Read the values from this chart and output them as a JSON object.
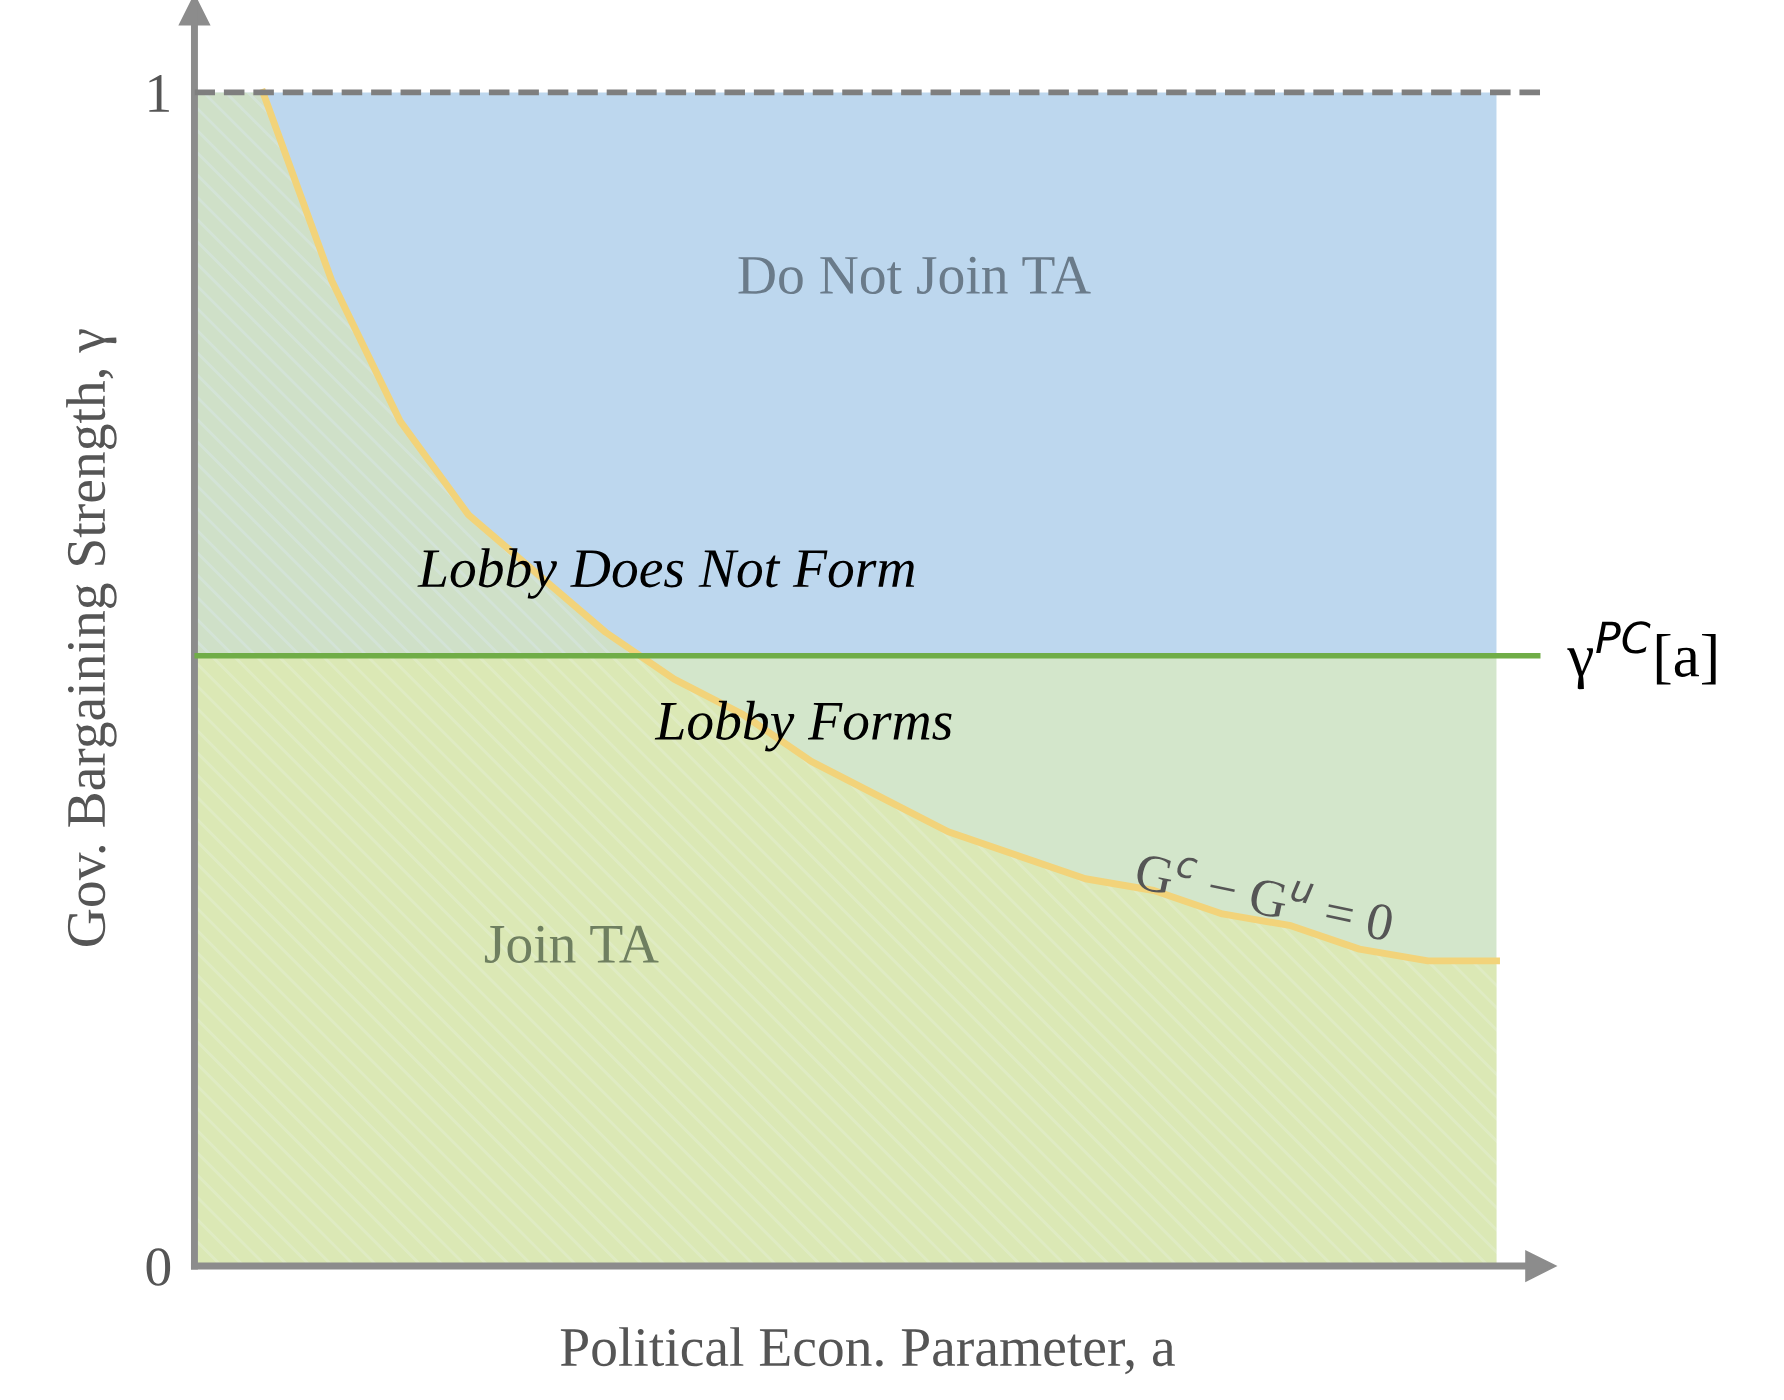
{
  "chart_data": {
    "type": "area",
    "xlabel": "Political Econ. Parameter, a",
    "ylabel": "Gov. Bargaining Strength, γ",
    "categories": [
      null,
      null,
      null,
      null,
      null,
      null,
      null,
      null,
      null,
      null,
      null,
      null,
      null,
      null,
      null,
      null,
      null,
      null,
      null,
      null
    ],
    "series": [
      {
        "name": "G$^{c}$ − G$^{u}$ = 0",
        "color": "#f2d37a",
        "values": [
          1.0,
          1.0,
          0.84,
          0.72,
          0.64,
          0.59,
          0.54,
          0.5,
          0.47,
          0.43,
          0.4,
          0.37,
          0.35,
          0.33,
          0.32,
          0.3,
          0.29,
          0.27,
          0.26,
          0.26
        ]
      }
    ],
    "ylim": [
      0,
      1.07
    ],
    "yticks": [
      0,
      1
    ],
    "grid": false,
    "legend": false,
    "bands": [
      {
        "axis": "y",
        "from": 0.52,
        "to": 1,
        "color": "#bdd7ee",
        "label": "Do Not Join TA"
      },
      {
        "axis": "y",
        "from": 0,
        "to": 0.52,
        "color": "#d3e6cb",
        "label": "Join TA"
      }
    ],
    "ref_lines": [
      {
        "axis": "y",
        "value": 1,
        "color": "#7f7f7f",
        "line_style": "dashed",
        "label": null
      },
      {
        "axis": "y",
        "value": 0.52,
        "color": "#70ad47",
        "line_style": "solid",
        "label": "γ$^{PC}$[a]"
      }
    ],
    "annotations": [
      "Lobby Does Not Form",
      "Lobby Forms"
    ]
  }
}
